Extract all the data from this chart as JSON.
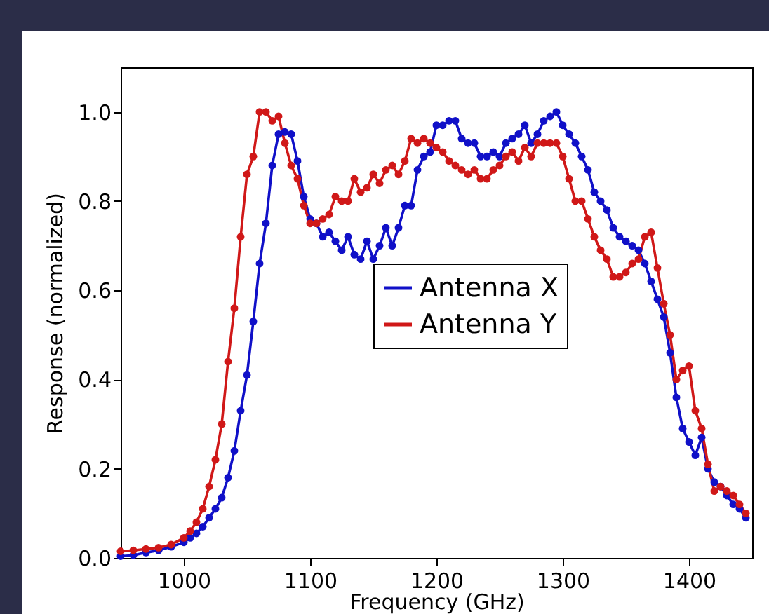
{
  "chart_data": {
    "type": "line",
    "xlabel": "Frequency (GHz)",
    "ylabel": "Response (normalized)",
    "x": [
      950,
      960,
      970,
      980,
      990,
      1000,
      1005,
      1010,
      1015,
      1020,
      1025,
      1030,
      1035,
      1040,
      1045,
      1050,
      1055,
      1060,
      1065,
      1070,
      1075,
      1080,
      1085,
      1090,
      1095,
      1100,
      1105,
      1110,
      1115,
      1120,
      1125,
      1130,
      1135,
      1140,
      1145,
      1150,
      1155,
      1160,
      1165,
      1170,
      1175,
      1180,
      1185,
      1190,
      1195,
      1200,
      1205,
      1210,
      1215,
      1220,
      1225,
      1230,
      1235,
      1240,
      1245,
      1250,
      1255,
      1260,
      1265,
      1270,
      1275,
      1280,
      1285,
      1290,
      1295,
      1300,
      1305,
      1310,
      1315,
      1320,
      1325,
      1330,
      1335,
      1340,
      1345,
      1350,
      1355,
      1360,
      1365,
      1370,
      1375,
      1380,
      1385,
      1390,
      1395,
      1400,
      1405,
      1410,
      1415,
      1420,
      1425,
      1430,
      1435,
      1440,
      1445
    ],
    "series": [
      {
        "name": "Antenna X",
        "color": "#1010c8",
        "values": [
          0.004,
          0.006,
          0.012,
          0.017,
          0.025,
          0.035,
          0.045,
          0.055,
          0.07,
          0.09,
          0.11,
          0.135,
          0.18,
          0.24,
          0.33,
          0.41,
          0.53,
          0.66,
          0.75,
          0.88,
          0.95,
          0.955,
          0.95,
          0.89,
          0.81,
          0.76,
          0.75,
          0.72,
          0.73,
          0.71,
          0.69,
          0.72,
          0.68,
          0.67,
          0.71,
          0.67,
          0.7,
          0.74,
          0.7,
          0.74,
          0.79,
          0.79,
          0.87,
          0.9,
          0.91,
          0.97,
          0.97,
          0.98,
          0.98,
          0.94,
          0.93,
          0.93,
          0.9,
          0.9,
          0.91,
          0.9,
          0.93,
          0.94,
          0.95,
          0.97,
          0.93,
          0.95,
          0.98,
          0.99,
          1.0,
          0.97,
          0.95,
          0.93,
          0.9,
          0.87,
          0.82,
          0.8,
          0.78,
          0.74,
          0.72,
          0.71,
          0.7,
          0.69,
          0.66,
          0.62,
          0.58,
          0.54,
          0.46,
          0.36,
          0.29,
          0.26,
          0.23,
          0.27,
          0.2,
          0.17,
          0.16,
          0.14,
          0.12,
          0.11,
          0.09
        ]
      },
      {
        "name": "Antenna Y",
        "color": "#d01818",
        "values": [
          0.015,
          0.017,
          0.02,
          0.023,
          0.03,
          0.045,
          0.06,
          0.08,
          0.11,
          0.16,
          0.22,
          0.3,
          0.44,
          0.56,
          0.72,
          0.86,
          0.9,
          1.0,
          1.0,
          0.98,
          0.99,
          0.93,
          0.88,
          0.85,
          0.79,
          0.75,
          0.75,
          0.76,
          0.77,
          0.81,
          0.8,
          0.8,
          0.85,
          0.82,
          0.83,
          0.86,
          0.84,
          0.87,
          0.88,
          0.86,
          0.89,
          0.94,
          0.93,
          0.94,
          0.93,
          0.92,
          0.91,
          0.89,
          0.88,
          0.87,
          0.86,
          0.87,
          0.85,
          0.85,
          0.87,
          0.88,
          0.9,
          0.91,
          0.89,
          0.92,
          0.9,
          0.93,
          0.93,
          0.93,
          0.93,
          0.9,
          0.85,
          0.8,
          0.8,
          0.76,
          0.72,
          0.69,
          0.67,
          0.63,
          0.63,
          0.64,
          0.66,
          0.67,
          0.72,
          0.73,
          0.65,
          0.57,
          0.5,
          0.4,
          0.42,
          0.43,
          0.33,
          0.29,
          0.21,
          0.15,
          0.16,
          0.15,
          0.14,
          0.12,
          0.1
        ]
      }
    ],
    "xlim": [
      950,
      1450
    ],
    "xticks": [
      1000,
      1100,
      1200,
      1300,
      1400
    ],
    "ylim": [
      0,
      1.1
    ],
    "yticks": [
      {
        "value": 0,
        "label": "0.0"
      },
      {
        "value": 0.2,
        "label": "0.2"
      },
      {
        "value": 0.4,
        "label": "0.4"
      },
      {
        "value": 0.6,
        "label": "0.6"
      },
      {
        "value": 0.8,
        "label": "0.8"
      },
      {
        "value": 1.0,
        "label": "1.0"
      }
    ],
    "legend": "center",
    "marker": "circle",
    "line_style": "solid"
  }
}
